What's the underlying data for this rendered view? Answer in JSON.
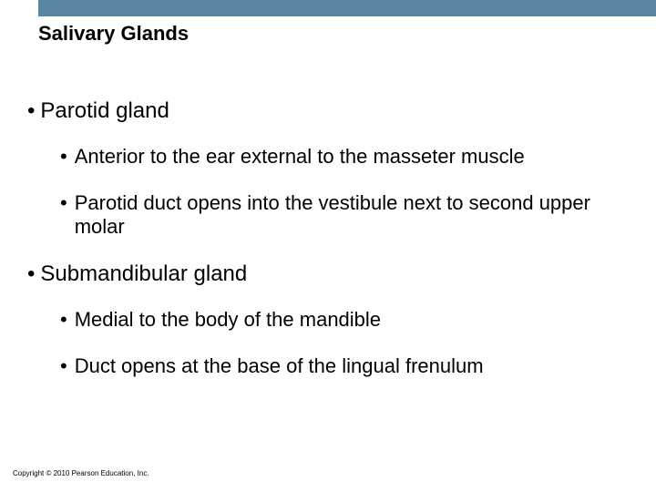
{
  "slide": {
    "title": "Salivary Glands",
    "top_bar_color": "#5a86a3",
    "bullets": [
      {
        "level": 1,
        "text": "Parotid gland"
      },
      {
        "level": 2,
        "text": "Anterior to the ear external to the masseter muscle"
      },
      {
        "level": 2,
        "text": "Parotid duct opens into the vestibule next to second upper molar"
      },
      {
        "level": 1,
        "text": "Submandibular gland"
      },
      {
        "level": 2,
        "text": "Medial to the body of the mandible"
      },
      {
        "level": 2,
        "text": "Duct opens at the base of the lingual frenulum"
      }
    ],
    "copyright": "Copyright © 2010 Pearson Education, Inc."
  },
  "style": {
    "title_fontsize": 22,
    "l1_fontsize": 24,
    "l2_fontsize": 22,
    "bullet_char": "•",
    "text_color": "#000000",
    "background_color": "#ffffff"
  }
}
